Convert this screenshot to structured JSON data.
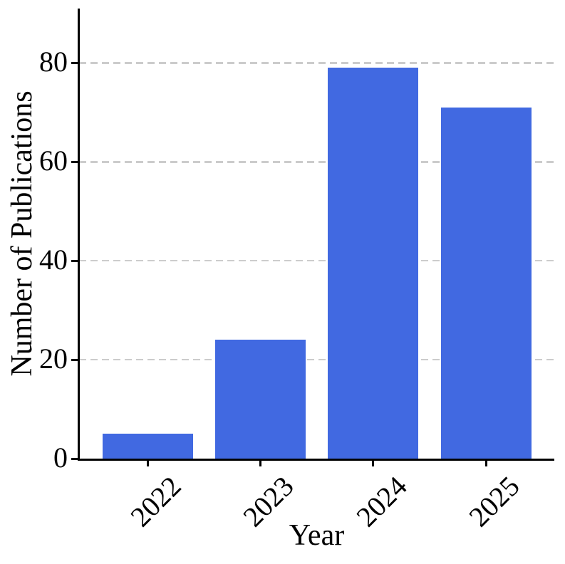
{
  "chart_data": {
    "type": "bar",
    "title": "",
    "categories": [
      "2022",
      "2023",
      "2024",
      "2025"
    ],
    "values": [
      5,
      24,
      79,
      71
    ],
    "xlabel": "Year",
    "ylabel": "Number of Publications",
    "yticks": [
      0,
      20,
      40,
      60,
      80
    ],
    "ylim": [
      0,
      91
    ],
    "grid": "horizontal-dashed",
    "legend": "none",
    "x_tick_rotation_deg": 45,
    "colors": {
      "bar": "#4169e1",
      "gridline": "#cccccc",
      "axis": "#000000",
      "background": "#ffffff"
    }
  }
}
